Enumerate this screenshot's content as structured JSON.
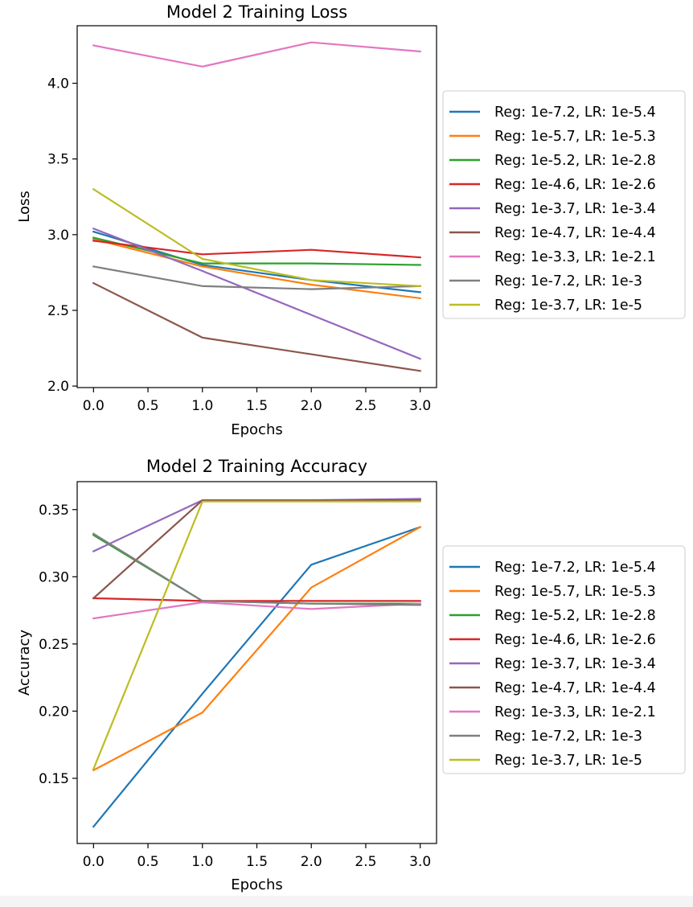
{
  "chart_data": [
    {
      "type": "line",
      "title": "Model 2 Training Loss",
      "xlabel": "Epochs",
      "ylabel": "Loss",
      "x": [
        0,
        1,
        2,
        3
      ],
      "xlim": [
        -0.15,
        3.15
      ],
      "ylim": [
        1.99,
        4.38
      ],
      "xticks": [
        "0.0",
        "0.5",
        "1.0",
        "1.5",
        "2.0",
        "2.5",
        "3.0"
      ],
      "yticks": [
        "2.0",
        "2.5",
        "3.0",
        "3.5",
        "4.0"
      ],
      "legend_position": "right",
      "series": [
        {
          "name": "Reg: 1e-7.2, LR: 1e-5.4",
          "color": "#1f77b4",
          "values": [
            3.02,
            2.8,
            2.7,
            2.62
          ]
        },
        {
          "name": "Reg: 1e-5.7, LR: 1e-5.3",
          "color": "#ff7f0e",
          "values": [
            2.97,
            2.79,
            2.67,
            2.58
          ]
        },
        {
          "name": "Reg: 1e-5.2, LR: 1e-2.8",
          "color": "#2ca02c",
          "values": [
            2.98,
            2.81,
            2.81,
            2.8
          ]
        },
        {
          "name": "Reg: 1e-4.6, LR: 1e-2.6",
          "color": "#d62728",
          "values": [
            2.96,
            2.87,
            2.9,
            2.85
          ]
        },
        {
          "name": "Reg: 1e-3.7, LR: 1e-3.4",
          "color": "#9467bd",
          "values": [
            3.04,
            2.76,
            2.47,
            2.18
          ]
        },
        {
          "name": "Reg: 1e-4.7, LR: 1e-4.4",
          "color": "#8c564b",
          "values": [
            2.68,
            2.32,
            2.21,
            2.1
          ]
        },
        {
          "name": "Reg: 1e-3.3, LR: 1e-2.1",
          "color": "#e377c2",
          "values": [
            4.25,
            4.11,
            4.27,
            4.21
          ]
        },
        {
          "name": "Reg: 1e-7.2, LR: 1e-3",
          "color": "#7f7f7f",
          "values": [
            2.79,
            2.66,
            2.64,
            2.66
          ]
        },
        {
          "name": "Reg: 1e-3.7, LR: 1e-5",
          "color": "#bcbd22",
          "values": [
            3.3,
            2.84,
            2.7,
            2.66
          ]
        }
      ]
    },
    {
      "type": "line",
      "title": "Model 2 Training Accuracy",
      "xlabel": "Epochs",
      "ylabel": "Accuracy",
      "x": [
        0,
        1,
        2,
        3
      ],
      "xlim": [
        -0.15,
        3.15
      ],
      "ylim": [
        0.1015,
        0.3708
      ],
      "xticks": [
        "0.0",
        "0.5",
        "1.0",
        "1.5",
        "2.0",
        "2.5",
        "3.0"
      ],
      "yticks": [
        "0.15",
        "0.20",
        "0.25",
        "0.30",
        "0.35"
      ],
      "legend_position": "right",
      "series": [
        {
          "name": "Reg: 1e-7.2, LR: 1e-5.4",
          "color": "#1f77b4",
          "values": [
            0.114,
            0.213,
            0.309,
            0.337
          ]
        },
        {
          "name": "Reg: 1e-5.7, LR: 1e-5.3",
          "color": "#ff7f0e",
          "values": [
            0.156,
            0.199,
            0.292,
            0.337
          ]
        },
        {
          "name": "Reg: 1e-5.2, LR: 1e-2.8",
          "color": "#2ca02c",
          "values": [
            0.331,
            0.282,
            0.28,
            0.28
          ]
        },
        {
          "name": "Reg: 1e-4.6, LR: 1e-2.6",
          "color": "#d62728",
          "values": [
            0.284,
            0.282,
            0.282,
            0.282
          ]
        },
        {
          "name": "Reg: 1e-3.7, LR: 1e-3.4",
          "color": "#9467bd",
          "values": [
            0.319,
            0.357,
            0.357,
            0.358
          ]
        },
        {
          "name": "Reg: 1e-4.7, LR: 1e-4.4",
          "color": "#8c564b",
          "values": [
            0.284,
            0.357,
            0.357,
            0.357
          ]
        },
        {
          "name": "Reg: 1e-3.3, LR: 1e-2.1",
          "color": "#e377c2",
          "values": [
            0.269,
            0.281,
            0.276,
            0.28
          ]
        },
        {
          "name": "Reg: 1e-7.2, LR: 1e-3",
          "color": "#7f7f7f",
          "values": [
            0.332,
            0.282,
            0.28,
            0.279
          ]
        },
        {
          "name": "Reg: 1e-3.7, LR: 1e-5",
          "color": "#bcbd22",
          "values": [
            0.157,
            0.356,
            0.356,
            0.356
          ]
        }
      ]
    }
  ]
}
